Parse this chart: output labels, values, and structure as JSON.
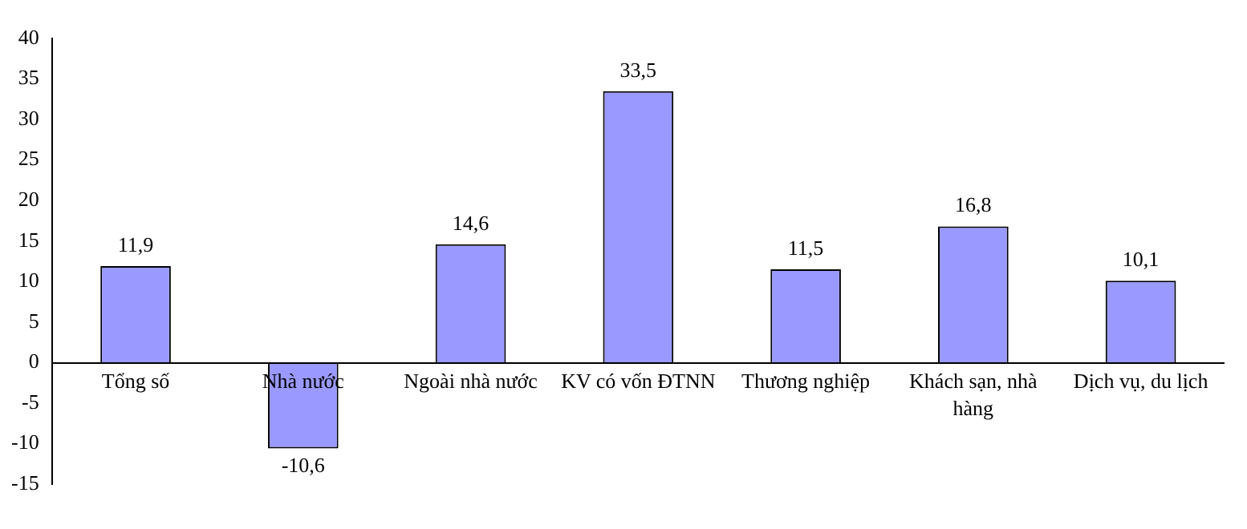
{
  "chart_data": {
    "type": "bar",
    "categories": [
      "Tổng số",
      "Nhà nước",
      "Ngoài nhà nước",
      "KV có vốn ĐTNN",
      "Thương nghiệp",
      "Khách sạn, nhà hàng",
      "Dịch vụ, du lịch"
    ],
    "values": [
      11.9,
      -10.6,
      14.6,
      33.5,
      11.5,
      16.8,
      10.1
    ],
    "value_labels": [
      "11,9",
      "-10,6",
      "14,6",
      "33,5",
      "11,5",
      "16,8",
      "10,1"
    ],
    "color": "#9999ff",
    "ylim": [
      -15,
      40
    ],
    "yticks": [
      -15,
      -10,
      -5,
      0,
      5,
      10,
      15,
      20,
      25,
      30,
      35,
      40
    ],
    "grid": false,
    "legend": false
  }
}
